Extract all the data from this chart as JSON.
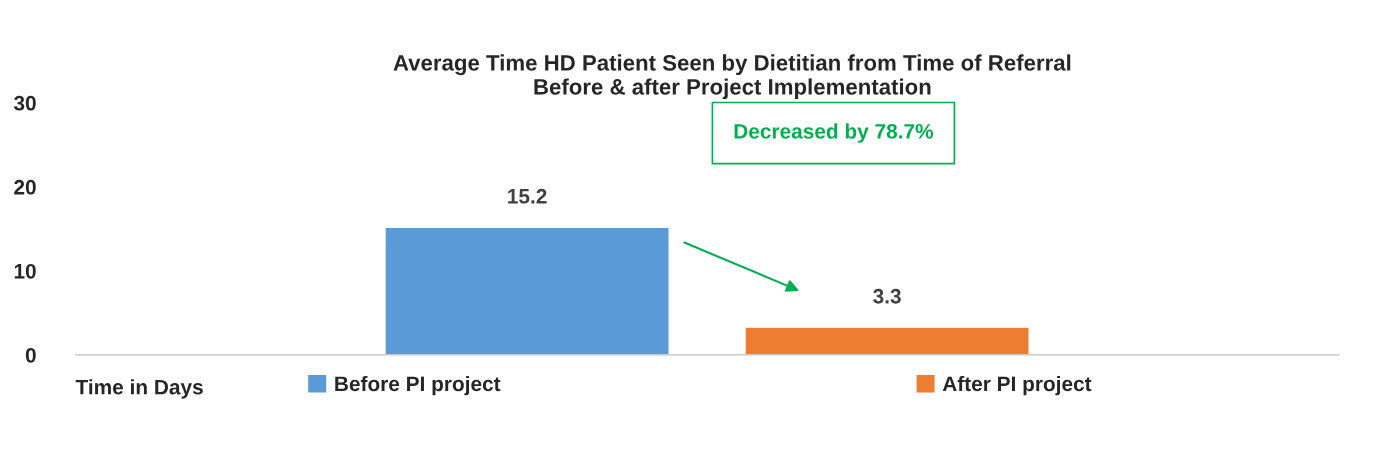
{
  "chart_data": {
    "type": "bar",
    "title": "Average Time HD Patient Seen by Dietitian from Time of Referral\nBefore & after Project Implementation",
    "xlabel": "Time in Days",
    "categories": [
      null
    ],
    "series": [
      {
        "name": "Before PI project",
        "color": "#5b9bd5",
        "values": [
          15.2
        ]
      },
      {
        "name": "After PI project",
        "color": "#ed7d31",
        "values": [
          3.3
        ]
      }
    ],
    "ylim": [
      0,
      30
    ],
    "yticks": [
      0,
      10,
      20,
      30
    ],
    "grid": false,
    "legend": "bottom",
    "data_labels": true,
    "annotations": [
      "Decreased by 78.7%"
    ]
  }
}
